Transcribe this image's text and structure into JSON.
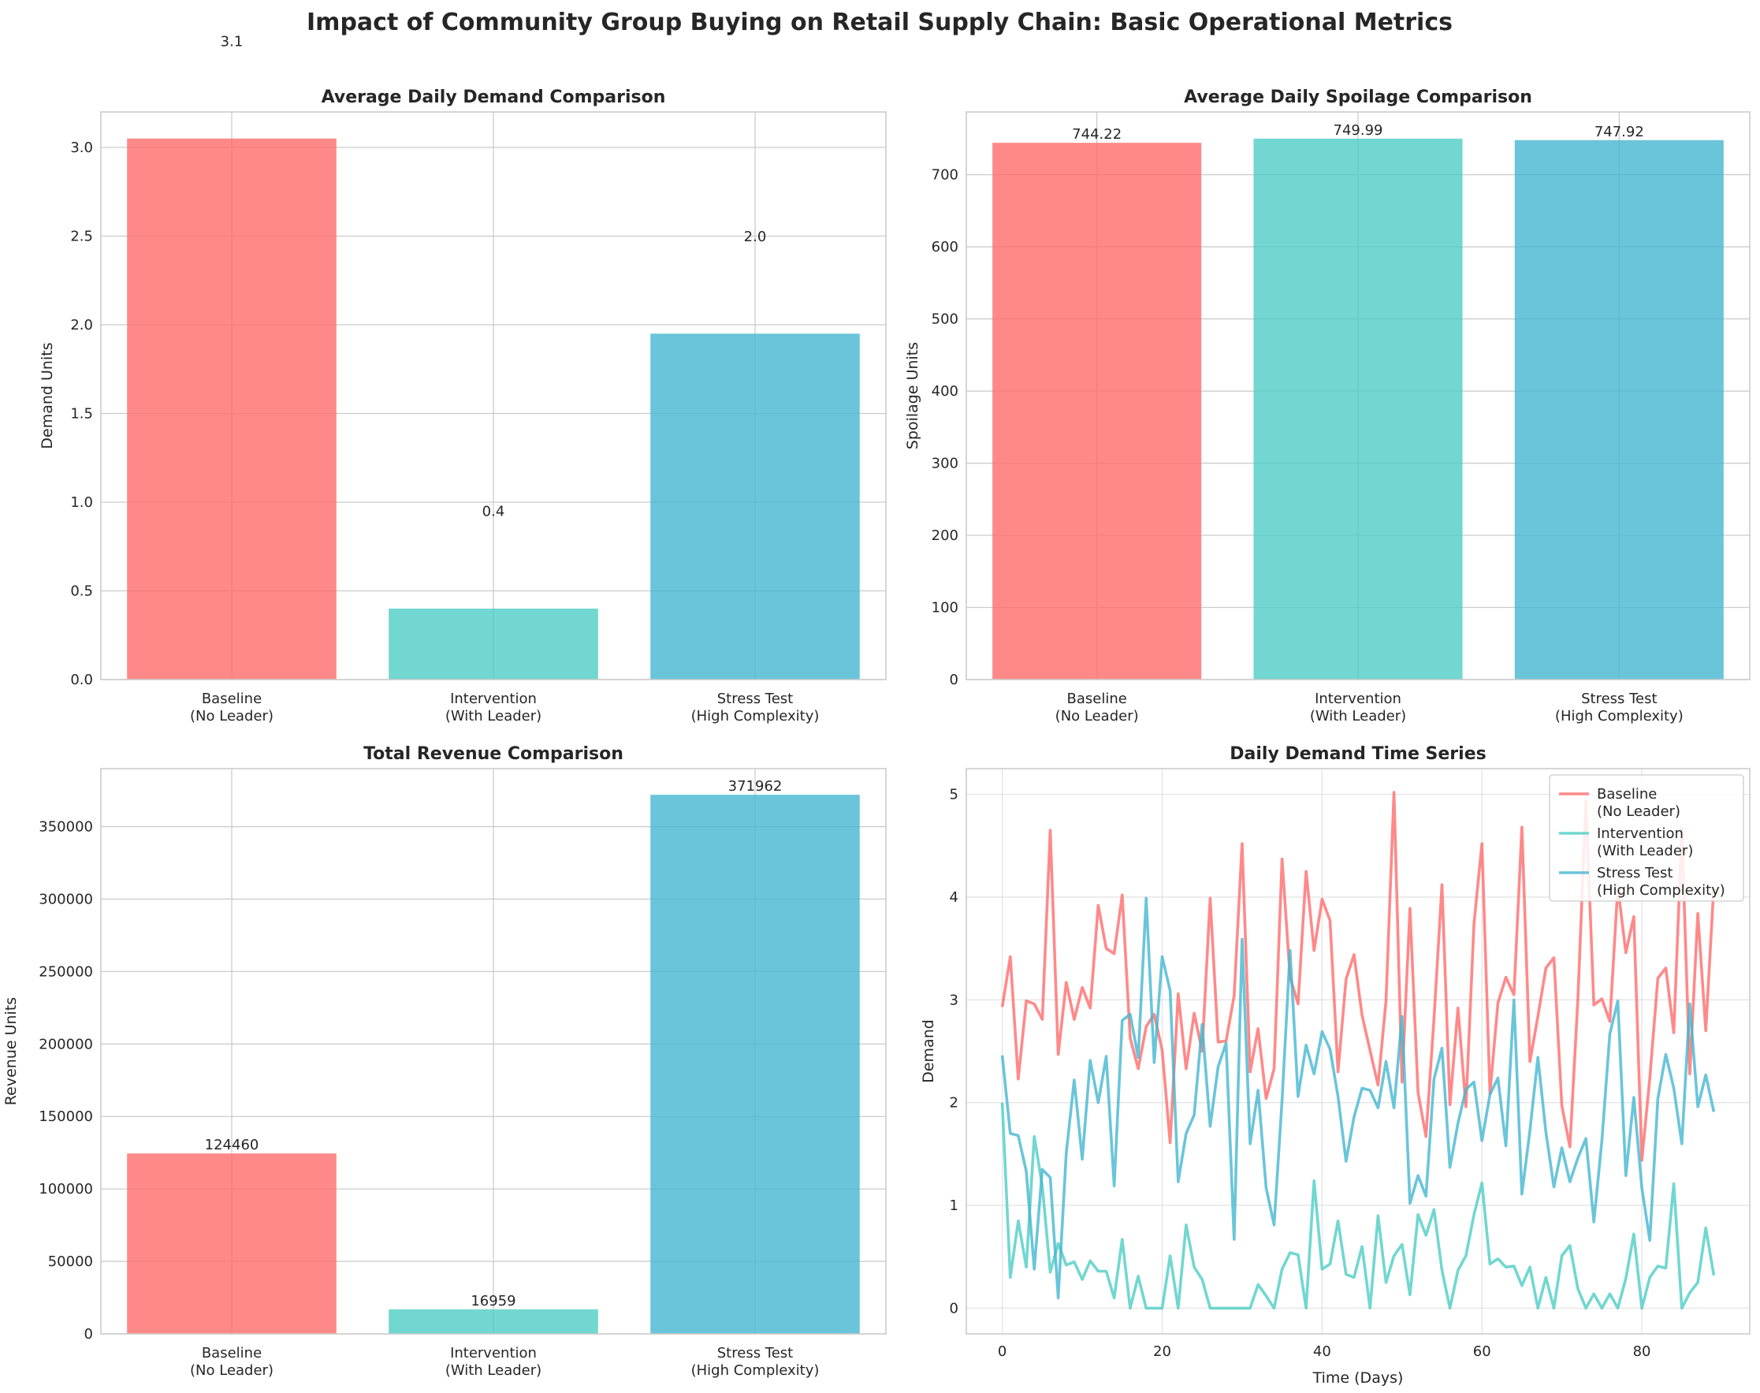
{
  "figure": {
    "title": "Impact of Community Group Buying on Retail Supply Chain: Basic Operational Metrics"
  },
  "colors": {
    "baseline": "#ff6b6b",
    "intervention": "#4ecdc4",
    "stress": "#45b7d1"
  },
  "chart_data": [
    {
      "id": "demand",
      "type": "bar",
      "title": "Average Daily Demand Comparison",
      "xlabel": "",
      "ylabel": "Demand Units",
      "categories": [
        "Baseline\n(No Leader)",
        "Intervention\n(With Leader)",
        "Stress Test\n(High Complexity)"
      ],
      "values": [
        3.05,
        0.4,
        1.95
      ],
      "data_labels": [
        "3.1",
        "0.4",
        "2.0"
      ],
      "label_offset": 0.5,
      "ylim": [
        0,
        3.2
      ],
      "yticks": [
        0.0,
        0.5,
        1.0,
        1.5,
        2.0,
        2.5,
        3.0
      ],
      "ytick_labels": [
        "0.0",
        "0.5",
        "1.0",
        "1.5",
        "2.0",
        "2.5",
        "3.0"
      ],
      "grid": true
    },
    {
      "id": "spoilage",
      "type": "bar",
      "title": "Average Daily Spoilage Comparison",
      "xlabel": "",
      "ylabel": "Spoilage Units",
      "categories": [
        "Baseline\n(No Leader)",
        "Intervention\n(With Leader)",
        "Stress Test\n(High Complexity)"
      ],
      "values": [
        744.22,
        749.99,
        747.92
      ],
      "data_labels": [
        "744.22",
        "749.99",
        "747.92"
      ],
      "label_offset": 0,
      "ylim": [
        0,
        787
      ],
      "yticks": [
        0,
        100,
        200,
        300,
        400,
        500,
        600,
        700
      ],
      "ytick_labels": [
        "0",
        "100",
        "200",
        "300",
        "400",
        "500",
        "600",
        "700"
      ],
      "grid": true
    },
    {
      "id": "revenue",
      "type": "bar",
      "title": "Total Revenue Comparison",
      "xlabel": "",
      "ylabel": "Revenue Units",
      "categories": [
        "Baseline\n(No Leader)",
        "Intervention\n(With Leader)",
        "Stress Test\n(High Complexity)"
      ],
      "values": [
        124460,
        16959,
        371962
      ],
      "data_labels": [
        "124460",
        "16959",
        "371962"
      ],
      "label_offset": 0,
      "ylim": [
        0,
        390000
      ],
      "yticks": [
        0,
        50000,
        100000,
        150000,
        200000,
        250000,
        300000,
        350000
      ],
      "ytick_labels": [
        "0",
        "50000",
        "100000",
        "150000",
        "200000",
        "250000",
        "300000",
        "350000"
      ],
      "grid": true
    },
    {
      "id": "timeseries",
      "type": "line",
      "title": "Daily Demand Time Series",
      "xlabel": "Time (Days)",
      "ylabel": "Demand",
      "xlim": [
        -4.5,
        93.5
      ],
      "ylim": [
        -0.25,
        5.25
      ],
      "xticks": [
        0,
        20,
        40,
        60,
        80
      ],
      "xtick_labels": [
        "0",
        "20",
        "40",
        "60",
        "80"
      ],
      "yticks": [
        0,
        1,
        2,
        3,
        4,
        5
      ],
      "ytick_labels": [
        "0",
        "1",
        "2",
        "3",
        "4",
        "5"
      ],
      "grid": true,
      "legend_position": "top-right",
      "x": [
        0,
        1,
        2,
        3,
        4,
        5,
        6,
        7,
        8,
        9,
        10,
        11,
        12,
        13,
        14,
        15,
        16,
        17,
        18,
        19,
        20,
        21,
        22,
        23,
        24,
        25,
        26,
        27,
        28,
        29,
        30,
        31,
        32,
        33,
        34,
        35,
        36,
        37,
        38,
        39,
        40,
        41,
        42,
        43,
        44,
        45,
        46,
        47,
        48,
        49,
        50,
        51,
        52,
        53,
        54,
        55,
        56,
        57,
        58,
        59,
        60,
        61,
        62,
        63,
        64,
        65,
        66,
        67,
        68,
        69,
        70,
        71,
        72,
        73,
        74,
        75,
        76,
        77,
        78,
        79,
        80,
        81,
        82,
        83,
        84,
        85,
        86,
        87,
        88,
        89
      ],
      "series": [
        {
          "name": "Baseline\n(No Leader)",
          "color_key": "baseline",
          "values": [
            2.93,
            3.42,
            2.23,
            2.99,
            2.96,
            2.81,
            4.65,
            2.47,
            3.17,
            2.81,
            3.12,
            2.92,
            3.92,
            3.5,
            3.45,
            4.02,
            2.63,
            2.33,
            2.74,
            2.86,
            2.51,
            1.61,
            3.06,
            2.33,
            2.87,
            2.5,
            3.99,
            2.59,
            2.6,
            3.04,
            4.52,
            2.3,
            2.72,
            2.04,
            2.33,
            4.37,
            3.22,
            2.96,
            4.25,
            3.48,
            3.98,
            3.77,
            2.3,
            3.2,
            3.44,
            2.85,
            2.51,
            2.17,
            2.99,
            5.02,
            2.2,
            3.89,
            2.1,
            1.67,
            2.82,
            4.12,
            1.98,
            2.92,
            1.96,
            3.74,
            4.52,
            2.09,
            2.97,
            3.22,
            3.05,
            4.68,
            2.4,
            2.84,
            3.31,
            3.41,
            1.97,
            1.57,
            3.0,
            4.93,
            2.95,
            3.01,
            2.79,
            4.1,
            3.46,
            3.81,
            1.44,
            2.24,
            3.21,
            3.31,
            2.68,
            4.66,
            2.28,
            3.84,
            2.7,
            4.1
          ]
        },
        {
          "name": "Intervention\n(With Leader)",
          "color_key": "intervention",
          "values": [
            2.0,
            0.3,
            0.85,
            0.4,
            1.67,
            1.19,
            0.35,
            0.63,
            0.42,
            0.45,
            0.28,
            0.46,
            0.36,
            0.36,
            0.1,
            0.67,
            0.0,
            0.31,
            0.0,
            0.0,
            0.0,
            0.51,
            0.0,
            0.81,
            0.4,
            0.28,
            0.0,
            0.0,
            0.0,
            0.0,
            0.0,
            0.0,
            0.23,
            0.12,
            0.0,
            0.38,
            0.54,
            0.52,
            0.0,
            1.24,
            0.38,
            0.43,
            0.85,
            0.33,
            0.3,
            0.6,
            0.0,
            0.9,
            0.25,
            0.51,
            0.62,
            0.13,
            0.91,
            0.71,
            0.96,
            0.37,
            0.0,
            0.37,
            0.51,
            0.91,
            1.22,
            0.43,
            0.48,
            0.4,
            0.41,
            0.22,
            0.4,
            0.0,
            0.3,
            0.0,
            0.51,
            0.61,
            0.19,
            0.0,
            0.14,
            0.0,
            0.14,
            0.0,
            0.29,
            0.72,
            0.0,
            0.3,
            0.41,
            0.39,
            1.21,
            0.0,
            0.15,
            0.25,
            0.78,
            0.32
          ]
        },
        {
          "name": "Stress Test\n(High Complexity)",
          "color_key": "stress",
          "values": [
            2.46,
            1.7,
            1.68,
            1.33,
            0.38,
            1.35,
            1.27,
            0.1,
            1.51,
            2.22,
            1.45,
            2.41,
            2.0,
            2.45,
            1.19,
            2.8,
            2.86,
            2.44,
            3.99,
            2.39,
            3.42,
            3.09,
            1.23,
            1.7,
            1.88,
            2.76,
            1.77,
            2.35,
            2.58,
            0.67,
            3.59,
            1.6,
            2.12,
            1.17,
            0.81,
            2.02,
            3.48,
            2.06,
            2.56,
            2.28,
            2.69,
            2.52,
            2.06,
            1.43,
            1.86,
            2.14,
            2.12,
            1.95,
            2.4,
            1.95,
            2.84,
            1.02,
            1.29,
            1.09,
            2.23,
            2.53,
            1.37,
            1.8,
            2.13,
            2.2,
            1.63,
            2.08,
            2.24,
            1.58,
            3.0,
            1.11,
            1.73,
            2.44,
            1.71,
            1.18,
            1.56,
            1.23,
            1.46,
            1.65,
            0.84,
            1.63,
            2.67,
            2.99,
            1.29,
            2.05,
            1.17,
            0.66,
            2.04,
            2.47,
            2.14,
            1.6,
            2.96,
            1.96,
            2.27,
            1.91
          ]
        }
      ]
    }
  ]
}
